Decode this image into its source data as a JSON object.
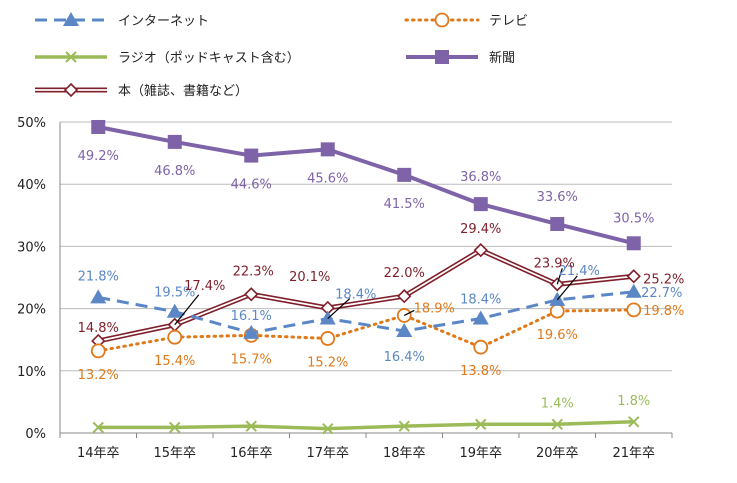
{
  "chart_data": {
    "type": "line",
    "categories": [
      "14年卒",
      "15年卒",
      "16年卒",
      "17年卒",
      "18年卒",
      "19年卒",
      "20年卒",
      "21年卒"
    ],
    "ylim": [
      0,
      50
    ],
    "yticks": [
      "0%",
      "10%",
      "20%",
      "30%",
      "40%",
      "50%"
    ],
    "grid": true,
    "legend_position": "top",
    "series": [
      {
        "key": "internet",
        "name": "インターネット",
        "color": "#5b87c6",
        "dash": "dashed",
        "marker": "triangle",
        "values": [
          21.8,
          19.5,
          16.1,
          18.4,
          16.4,
          18.4,
          21.4,
          22.7
        ],
        "labels": [
          "21.8%",
          "19.5%",
          "16.1%",
          "18.4%",
          "16.4%",
          "18.4%",
          "21.4%",
          "22.7%"
        ]
      },
      {
        "key": "tv",
        "name": "テレビ",
        "color": "#e0791a",
        "dash": "dotted",
        "marker": "circle",
        "values": [
          13.2,
          15.4,
          15.7,
          15.2,
          18.9,
          13.8,
          19.6,
          19.8
        ],
        "labels": [
          "13.2%",
          "15.4%",
          "15.7%",
          "15.2%",
          "18.9%",
          "13.8%",
          "19.6%",
          "19.8%"
        ]
      },
      {
        "key": "radio",
        "name": "ラジオ（ポッドキャスト含む）",
        "color": "#9bbb59",
        "dash": "solid",
        "marker": "x",
        "values": [
          0.9,
          0.9,
          1.1,
          0.7,
          1.1,
          1.4,
          1.4,
          1.8
        ],
        "labels": [
          "",
          "",
          "",
          "",
          "",
          "",
          "1.4%",
          "1.8%"
        ]
      },
      {
        "key": "newspaper",
        "name": "新聞",
        "color": "#7f63a8",
        "dash": "solid",
        "marker": "square",
        "values": [
          49.2,
          46.8,
          44.6,
          45.6,
          41.5,
          36.8,
          33.6,
          30.5
        ],
        "labels": [
          "49.2%",
          "46.8%",
          "44.6%",
          "45.6%",
          "41.5%",
          "36.8%",
          "33.6%",
          "30.5%"
        ]
      },
      {
        "key": "books",
        "name": "本（雑誌、書籍など）",
        "color": "#7f1f2a",
        "dash": "double",
        "marker": "diamond",
        "values": [
          14.8,
          17.4,
          22.3,
          20.1,
          22.0,
          29.4,
          23.9,
          25.2
        ],
        "labels": [
          "14.8%",
          "17.4%",
          "22.3%",
          "20.1%",
          "22.0%",
          "29.4%",
          "23.9%",
          "25.2%"
        ]
      }
    ]
  }
}
